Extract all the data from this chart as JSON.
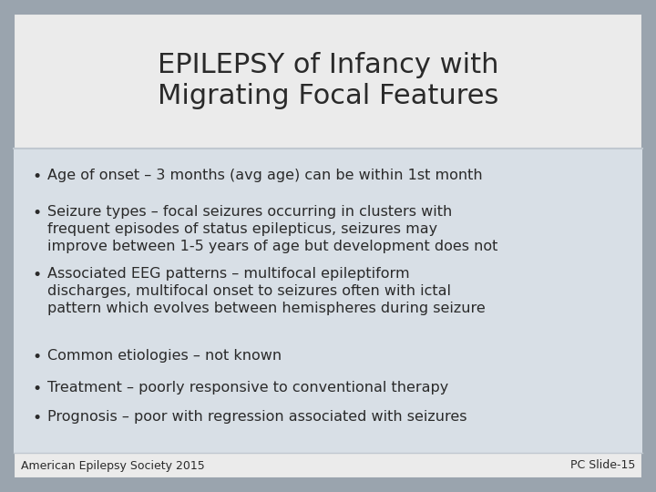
{
  "title_line1": "EPILEPSY of Infancy with",
  "title_line2": "Migrating Focal Features",
  "bullets": [
    "Age of onset – 3 months (avg age) can be within 1st month",
    "Seizure types – focal seizures occurring in clusters with\nfrequent episodes of status epilepticus, seizures may\nimprove between 1-5 years of age but development does not",
    "Associated EEG patterns – multifocal epileptiform\ndischarges, multifocal onset to seizures often with ictal\npattern which evolves between hemispheres during seizure",
    "Common etiologies – not known",
    "Treatment – poorly responsive to conventional therapy",
    "Prognosis – poor with regression associated with seizures"
  ],
  "footer_left": "American Epilepsy Society 2015",
  "footer_right": "PC Slide-15",
  "bg_outer": "#9aa4ae",
  "bg_title": "#ebebeb",
  "bg_content": "#d8dfe6",
  "border_color": "#9aa4ae",
  "inner_border": "#c0c8d0",
  "text_color": "#2a2a2a",
  "title_fontsize": 22,
  "bullet_fontsize": 11.5,
  "footer_fontsize": 9
}
